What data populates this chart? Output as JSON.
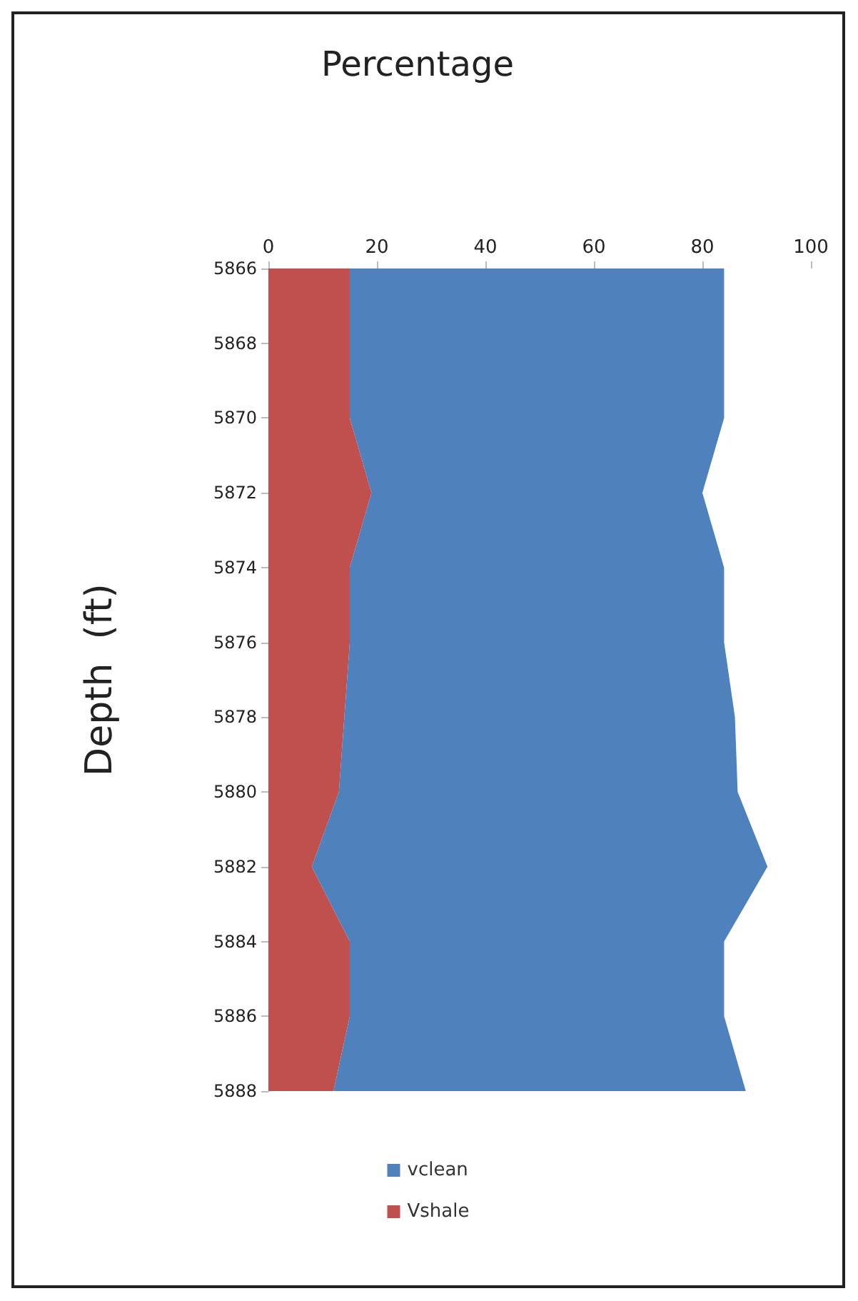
{
  "chart_data": {
    "type": "area",
    "title": "Percentage",
    "ylabel": "Depth  (ft)",
    "orientation": "horizontal",
    "stacked": true,
    "categories": [
      "5866",
      "5868",
      "5870",
      "5872",
      "5874",
      "5876",
      "5878",
      "5880",
      "5882",
      "5884",
      "5886",
      "5888"
    ],
    "series": [
      {
        "name": "Vshale",
        "color": "#c0504d",
        "values": [
          15,
          15,
          15,
          19,
          15,
          15,
          14,
          13,
          8,
          15,
          15,
          12
        ]
      },
      {
        "name": "vclean",
        "color": "#4f81bd",
        "values": [
          69,
          69,
          69,
          61,
          69,
          69,
          72,
          73.5,
          84,
          69,
          69,
          76
        ]
      }
    ],
    "xlim": [
      0,
      100
    ],
    "xticks": [
      0,
      20,
      40,
      60,
      80,
      100
    ],
    "grid": false,
    "legend": "bottom"
  }
}
